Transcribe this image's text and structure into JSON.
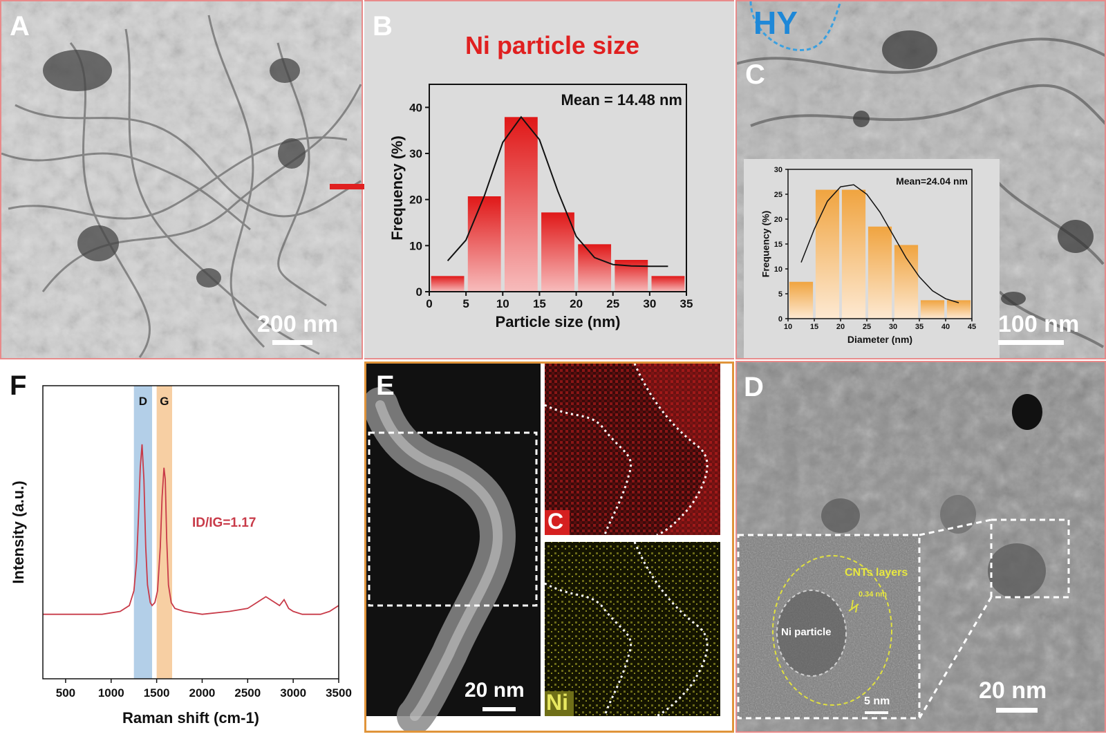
{
  "panels": {
    "A": {
      "label": "A",
      "scale_bar": "200 nm"
    },
    "B": {
      "label": "B"
    },
    "C": {
      "label": "C",
      "scale_bar": "100 nm",
      "region_label": "HY"
    },
    "D": {
      "label": "D",
      "scale_bar": "20 nm",
      "inset_scale_bar": "5 nm",
      "annotations": {
        "layers": "CNTs layers",
        "spacing": "0.34 nm",
        "particle": "Ni particle"
      }
    },
    "E": {
      "label": "E",
      "scale_bar": "20 nm",
      "map_c": "C",
      "map_ni": "Ni"
    },
    "F": {
      "label": "F"
    }
  },
  "colors": {
    "red": "#e02020",
    "orange": "#f0a040",
    "raman": "#c83a48",
    "d_band": "#b3cfe8",
    "g_band": "#f7cfa3"
  },
  "chart_data": [
    {
      "id": "B",
      "type": "bar",
      "title": "Ni particle size",
      "xlabel": "Particle size (nm)",
      "ylabel": "Frequency (%)",
      "annotation": "Mean = 14.48 nm",
      "xlim": [
        0,
        35
      ],
      "ylim": [
        0,
        45
      ],
      "xticks": [
        0,
        5,
        10,
        15,
        20,
        25,
        30,
        35
      ],
      "yticks": [
        0,
        10,
        20,
        30,
        40
      ],
      "bin_width": 4.5,
      "x": [
        2.5,
        7.5,
        12.5,
        17.5,
        22.5,
        27.5,
        32.5
      ],
      "values": [
        3.4,
        20.7,
        37.9,
        17.2,
        10.3,
        6.9,
        3.4
      ],
      "fit_x": [
        2.5,
        5,
        7.5,
        10,
        12.5,
        15,
        17.5,
        20,
        22.5,
        25,
        27.5,
        30,
        32.5
      ],
      "fit_y": [
        6.7,
        11.2,
        20.8,
        32.4,
        37.9,
        33.0,
        21.8,
        12.0,
        7.4,
        5.9,
        5.6,
        5.5,
        5.5
      ]
    },
    {
      "id": "C",
      "type": "bar",
      "xlabel": "Diameter (nm)",
      "ylabel": "Frequency (%)",
      "annotation": "Mean=24.04 nm",
      "xlim": [
        10,
        45
      ],
      "ylim": [
        0,
        30
      ],
      "xticks": [
        10,
        15,
        20,
        25,
        30,
        35,
        40,
        45
      ],
      "yticks": [
        0,
        5,
        10,
        15,
        20,
        25,
        30
      ],
      "bin_width": 4.5,
      "x": [
        12.5,
        17.5,
        22.5,
        27.5,
        32.5,
        37.5,
        42.5
      ],
      "values": [
        7.4,
        25.9,
        25.9,
        18.5,
        14.8,
        3.7,
        3.7
      ],
      "fit_x": [
        12.5,
        15,
        17.5,
        20,
        22.5,
        25,
        27.5,
        30,
        32.5,
        35,
        37.5,
        40,
        42.5
      ],
      "fit_y": [
        11.3,
        18.0,
        23.6,
        26.5,
        26.9,
        25.0,
        21.4,
        16.8,
        12.2,
        8.4,
        5.6,
        4.0,
        3.2
      ]
    },
    {
      "id": "F",
      "type": "line",
      "xlabel": "Raman shift (cm-1)",
      "ylabel": "Intensity (a.u.)",
      "annotation": "ID/IG=1.17",
      "bands": [
        {
          "name": "D",
          "range": [
            1250,
            1450
          ]
        },
        {
          "name": "G",
          "range": [
            1500,
            1670
          ]
        }
      ],
      "xlim": [
        250,
        3500
      ],
      "ylim": [
        0,
        1
      ],
      "xticks": [
        500,
        1000,
        1500,
        2000,
        2500,
        3000,
        3500
      ],
      "x": [
        250,
        600,
        900,
        1100,
        1200,
        1250,
        1280,
        1300,
        1320,
        1340,
        1360,
        1380,
        1400,
        1430,
        1450,
        1480,
        1510,
        1540,
        1560,
        1580,
        1595,
        1610,
        1630,
        1660,
        1700,
        1800,
        2000,
        2300,
        2500,
        2600,
        2700,
        2800,
        2850,
        2900,
        2950,
        3000,
        3100,
        3200,
        3300,
        3400,
        3500
      ],
      "y": [
        0.22,
        0.22,
        0.22,
        0.23,
        0.25,
        0.3,
        0.4,
        0.55,
        0.72,
        0.8,
        0.68,
        0.45,
        0.32,
        0.26,
        0.25,
        0.26,
        0.3,
        0.45,
        0.62,
        0.72,
        0.68,
        0.48,
        0.32,
        0.26,
        0.24,
        0.23,
        0.22,
        0.23,
        0.24,
        0.26,
        0.28,
        0.26,
        0.25,
        0.27,
        0.24,
        0.23,
        0.22,
        0.22,
        0.22,
        0.23,
        0.25
      ]
    }
  ]
}
